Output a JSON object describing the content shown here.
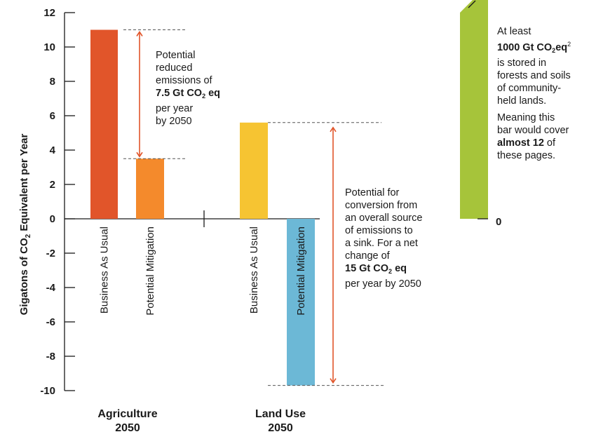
{
  "chart_data": {
    "type": "bar",
    "ylabel_parts": [
      "Gigatons of CO",
      "2",
      " Equivalent per Year"
    ],
    "ylim": [
      -10,
      12
    ],
    "yticks": [
      "-10",
      "-8",
      "-6",
      "-4",
      "-2",
      "0",
      "2",
      "4",
      "6",
      "8",
      "10",
      "12"
    ],
    "groups": [
      {
        "name_line1": "Agriculture",
        "name_line2": "2050",
        "bars": [
          {
            "label": "Business As Usual",
            "value": 11.0,
            "color": "#e1552a"
          },
          {
            "label": "Potential Mitigation",
            "value": 3.5,
            "color": "#f48a2c"
          }
        ]
      },
      {
        "name_line1": "Land Use",
        "name_line2": "2050",
        "bars": [
          {
            "label": "Business As Usual",
            "value": 5.6,
            "color": "#f6c432"
          },
          {
            "label": "Potential Mitigation",
            "value": -9.7,
            "color": "#6cb8d6"
          }
        ]
      }
    ],
    "side_bar": {
      "zero_label": "0",
      "color": "#a6c43a",
      "baseline": 0
    }
  },
  "annotations": {
    "agri": {
      "line1": "Potential",
      "line2": "reduced",
      "line3": "emissions of",
      "bold_a": "7.5 Gt CO",
      "bold_sub": "2",
      "bold_b": " eq",
      "line5": "per year",
      "line6": "by 2050"
    },
    "land": {
      "line1": "Potential for",
      "line2": "conversion from",
      "line3": "an overall source",
      "line4": "of emissions to",
      "line5": "a sink. For a net",
      "line6": "change of",
      "bold_a": "15 Gt CO",
      "bold_sub": "2",
      "bold_b": " eq",
      "line8": "per year by 2050"
    },
    "side": {
      "line1": "At least",
      "bold_a": "1000 Gt CO",
      "bold_sub": "2",
      "bold_b": "eq",
      "sup": "2",
      "line3": "is stored in",
      "line4": "forests and soils",
      "line5": "of community-",
      "line6": "held lands.",
      "p2_line1": "Meaning this",
      "p2_line2": "bar would cover",
      "p2_bold": "almost 12",
      "p2_after": " of",
      "p2_line4": "these pages."
    }
  },
  "colors": {
    "arrow": "#e1552a",
    "axis": "#1a1a1a",
    "dash": "#555555"
  }
}
